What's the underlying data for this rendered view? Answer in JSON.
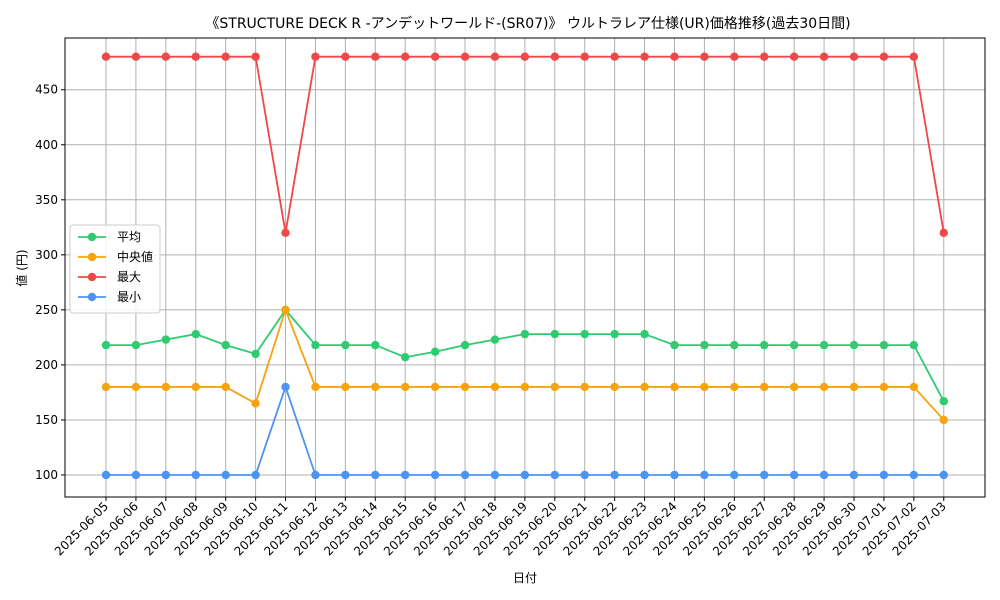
{
  "chart_data": {
    "type": "line",
    "title": "《STRUCTURE DECK R -アンデットワールド-(SR07)》 ウルトラレア仕様(UR)価格推移(過去30日間)",
    "xlabel": "日付",
    "ylabel": "値 (円)",
    "ylim": [
      80,
      497
    ],
    "yticks": [
      100,
      150,
      200,
      250,
      300,
      350,
      400,
      450
    ],
    "grid": true,
    "legend_position": "center-left",
    "categories": [
      "2025-06-05",
      "2025-06-06",
      "2025-06-07",
      "2025-06-08",
      "2025-06-09",
      "2025-06-10",
      "2025-06-11",
      "2025-06-12",
      "2025-06-13",
      "2025-06-14",
      "2025-06-15",
      "2025-06-16",
      "2025-06-17",
      "2025-06-18",
      "2025-06-19",
      "2025-06-20",
      "2025-06-21",
      "2025-06-22",
      "2025-06-23",
      "2025-06-24",
      "2025-06-25",
      "2025-06-26",
      "2025-06-27",
      "2025-06-28",
      "2025-06-29",
      "2025-06-30",
      "2025-07-01",
      "2025-07-02",
      "2025-07-03"
    ],
    "series": [
      {
        "name": "平均",
        "color": "#2ecc71",
        "values": [
          218,
          218,
          223,
          228,
          218,
          210,
          250,
          218,
          218,
          218,
          207,
          212,
          218,
          223,
          228,
          228,
          228,
          228,
          228,
          218,
          218,
          218,
          218,
          218,
          218,
          218,
          218,
          218,
          167
        ]
      },
      {
        "name": "中央値",
        "color": "#f5a30f",
        "values": [
          180,
          180,
          180,
          180,
          180,
          165,
          250,
          180,
          180,
          180,
          180,
          180,
          180,
          180,
          180,
          180,
          180,
          180,
          180,
          180,
          180,
          180,
          180,
          180,
          180,
          180,
          180,
          180,
          150
        ]
      },
      {
        "name": "最大",
        "color": "#f04848",
        "values": [
          480,
          480,
          480,
          480,
          480,
          480,
          320,
          480,
          480,
          480,
          480,
          480,
          480,
          480,
          480,
          480,
          480,
          480,
          480,
          480,
          480,
          480,
          480,
          480,
          480,
          480,
          480,
          480,
          320
        ]
      },
      {
        "name": "最小",
        "color": "#4d94f0",
        "values": [
          100,
          100,
          100,
          100,
          100,
          100,
          180,
          100,
          100,
          100,
          100,
          100,
          100,
          100,
          100,
          100,
          100,
          100,
          100,
          100,
          100,
          100,
          100,
          100,
          100,
          100,
          100,
          100,
          100
        ]
      }
    ]
  }
}
